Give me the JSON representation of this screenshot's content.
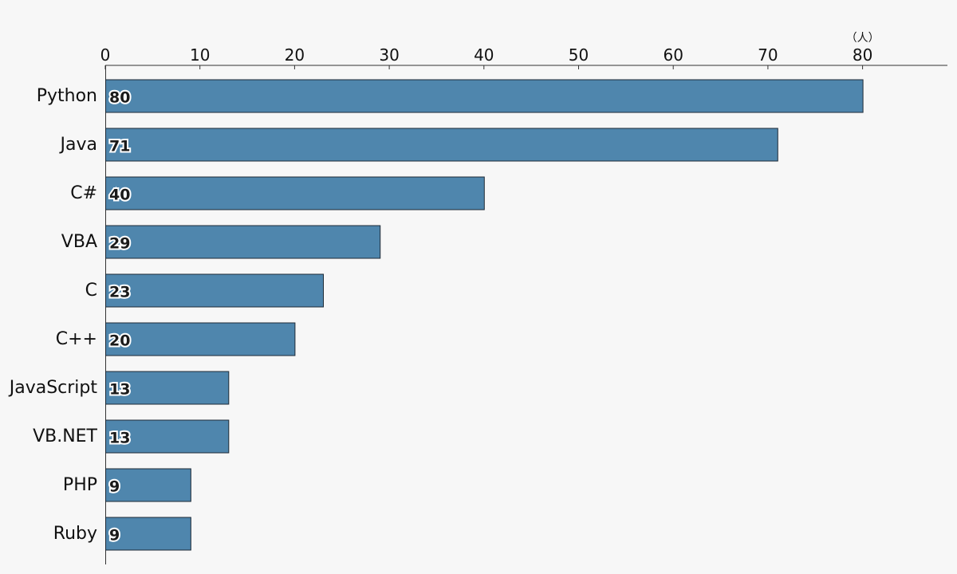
{
  "chart_data": {
    "type": "bar",
    "orientation": "horizontal",
    "categories": [
      "Python",
      "Java",
      "C#",
      "VBA",
      "C",
      "C++",
      "JavaScript",
      "VB.NET",
      "PHP",
      "Ruby"
    ],
    "values": [
      80,
      71,
      40,
      29,
      23,
      20,
      13,
      13,
      9,
      9
    ],
    "value_labels": [
      "80",
      "71",
      "40",
      "29",
      "23",
      "20",
      "13",
      "13",
      "9",
      "9"
    ],
    "x_ticks": [
      "0",
      "10",
      "20",
      "30",
      "40",
      "50",
      "60",
      "70",
      "80"
    ],
    "x_tick_values": [
      0,
      10,
      20,
      30,
      40,
      50,
      60,
      70,
      80
    ],
    "x_unit": "（人）",
    "xlim": [
      0,
      90
    ],
    "bar_color": "#4f86ad",
    "grid": false,
    "axis_position": "top"
  }
}
